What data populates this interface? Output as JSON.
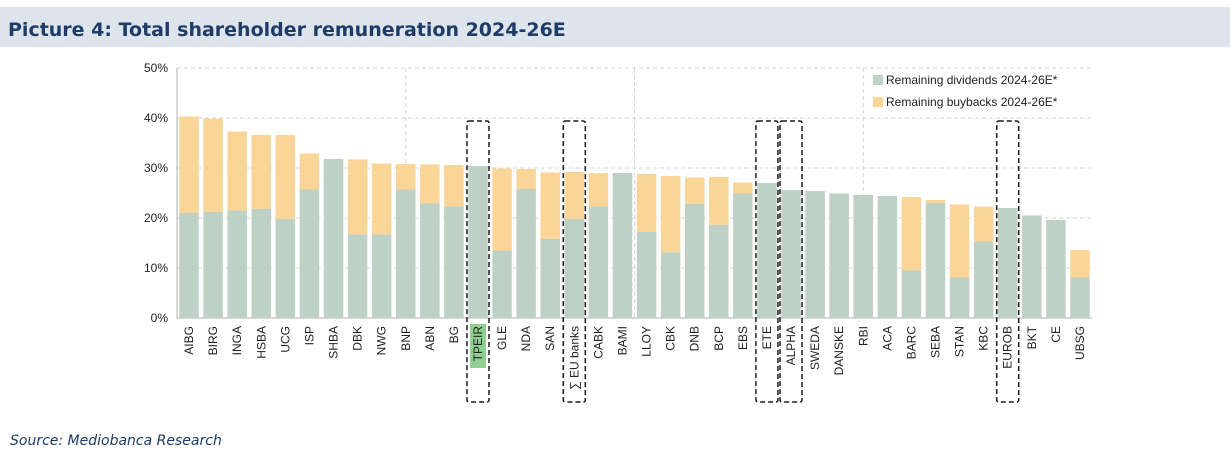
{
  "header": {
    "title": "Picture 4: Total shareholder remuneration 2024-26E"
  },
  "footer": {
    "source": "Source: Mediobanca Research"
  },
  "colors": {
    "dividends": "#bed1c6",
    "buybacks": "#f9d697",
    "highlight_label": "#90cf92",
    "title_bar": "#dde4ec",
    "title_text": "#1e3c68"
  },
  "chart_data": {
    "type": "bar",
    "stacked": true,
    "title": "",
    "xlabel": "",
    "ylabel": "",
    "ylim": [
      0,
      50
    ],
    "yticks": [
      "0%",
      "10%",
      "20%",
      "30%",
      "40%",
      "50%"
    ],
    "grid": true,
    "legend_position": "top-right",
    "categories": [
      "AIBG",
      "BIRG",
      "INGA",
      "HSBA",
      "UCG",
      "ISP",
      "SHBA",
      "DBK",
      "NWG",
      "BNP",
      "ABN",
      "BG",
      "TPEIR",
      "GLE",
      "NDA",
      "SAN",
      "∑ EU banks",
      "CABK",
      "BAMI",
      "LLOY",
      "CBK",
      "DNB",
      "BCP",
      "EBS",
      "ETE",
      "ALPHA",
      "SWEDA",
      "DANSKE",
      "RBI",
      "ACA",
      "BARC",
      "SEBA",
      "STAN",
      "KBC",
      "EUROB",
      "BKT",
      "CE",
      "UBSG"
    ],
    "series": [
      {
        "name": "Remaining dividends 2024-26E*",
        "values": [
          21.0,
          21.2,
          21.5,
          21.8,
          19.8,
          25.7,
          31.8,
          16.7,
          16.7,
          25.7,
          22.9,
          22.3,
          30.4,
          13.5,
          25.8,
          15.8,
          19.8,
          22.3,
          29.0,
          17.2,
          13.1,
          22.8,
          18.6,
          24.9,
          27.0,
          25.6,
          25.4,
          24.9,
          24.6,
          24.4,
          9.5,
          23.0,
          8.1,
          15.3,
          22.0,
          20.5,
          19.6,
          8.1
        ]
      },
      {
        "name": "Remaining buybacks 2024-26E*",
        "values": [
          19.3,
          18.7,
          15.8,
          14.8,
          16.8,
          7.2,
          0,
          15.0,
          14.2,
          5.1,
          7.8,
          8.3,
          0,
          16.4,
          4.0,
          13.3,
          9.4,
          6.7,
          0,
          11.6,
          15.3,
          5.3,
          9.6,
          2.2,
          0,
          0,
          0,
          0,
          0,
          0,
          14.7,
          0.6,
          14.6,
          7.0,
          0,
          0,
          0,
          5.5
        ]
      }
    ],
    "highlighted_categories": [
      "TPEIR",
      "∑ EU banks",
      "ETE",
      "ALPHA",
      "EUROB"
    ],
    "filled_label_categories": [
      "TPEIR"
    ]
  }
}
